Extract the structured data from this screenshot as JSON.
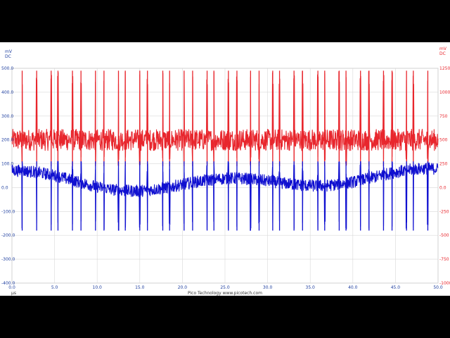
{
  "footer_text": "Pico Technology   www.picotech.com",
  "colors": {
    "channel_a": "#1010d0",
    "channel_b": "#e8262d",
    "grid": "#d8d8d8"
  },
  "chart_data": {
    "type": "line",
    "title": "",
    "xlabel": "",
    "x_unit": "µs",
    "xlim": [
      0,
      50
    ],
    "x_ticks": [
      "0.0",
      "5.0",
      "10.0",
      "15.0",
      "20.0",
      "25.0",
      "30.0",
      "35.0",
      "40.0",
      "45.0",
      "50.0"
    ],
    "left_axis": {
      "unit": "mV",
      "coupling": "DC",
      "ylim": [
        -400,
        500
      ],
      "ticks": [
        "500.0",
        "400.0",
        "300.0",
        "200.0",
        "100.0",
        "0.0",
        "-100.0",
        "-200.0",
        "-300.0",
        "-400.0"
      ]
    },
    "right_axis": {
      "unit": "mV",
      "coupling": "DC",
      "ylim": [
        -1000,
        1250
      ],
      "ticks": [
        "1250",
        "1000",
        "750",
        "500",
        "250",
        "0.0",
        "-250",
        "-500",
        "-750",
        "-1000"
      ]
    },
    "grid": true,
    "spike_times": [
      1.2,
      2.9,
      4.6,
      5.4,
      7.1,
      8.1,
      9.8,
      10.8,
      12.5,
      13.3,
      15.0,
      15.9,
      17.7,
      18.5,
      20.2,
      21.2,
      22.9,
      23.7,
      25.4,
      26.4,
      28.0,
      29.0,
      30.6,
      31.4,
      33.1,
      34.1,
      35.9,
      36.7,
      38.4,
      39.2,
      40.9,
      41.9,
      43.6,
      44.6,
      46.3,
      47.1,
      48.8
    ],
    "series": [
      {
        "color": "#e8262d",
        "axis": "left",
        "baseline_mV": 200,
        "noise_band_mV": 45,
        "spike_peak_mV": 490,
        "spike_trough_mV": 90
      },
      {
        "color": "#1010d0",
        "axis": "left",
        "baseline_mV": 30,
        "wander_mV": 50,
        "noise_band_mV": 25,
        "spike_peak_mV": 110,
        "spike_trough_mV": -180
      }
    ]
  }
}
